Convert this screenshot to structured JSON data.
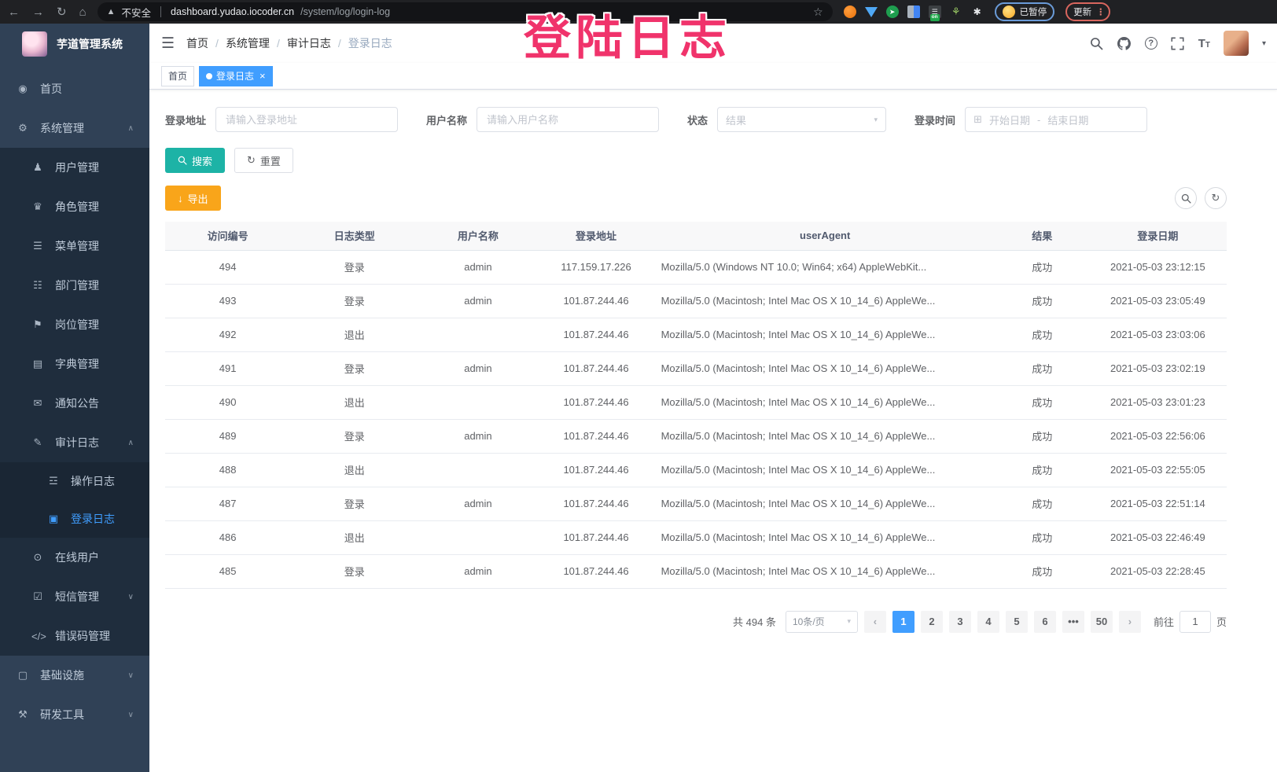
{
  "browser": {
    "security_label": "不安全",
    "url_host": "dashboard.yudao.iocoder.cn",
    "url_path": "/system/log/login-log",
    "extension_on_badge": "on",
    "profile_badge": "已暂停",
    "update_button": "更新"
  },
  "watermark": {
    "text": "登陆日志"
  },
  "sidebar": {
    "title": "芋道管理系统",
    "menu": [
      {
        "label": "首页",
        "icon": "dashboard",
        "level": 1
      },
      {
        "label": "系统管理",
        "icon": "system",
        "level": 1,
        "expand": "up"
      },
      {
        "label": "用户管理",
        "icon": "user",
        "level": 2
      },
      {
        "label": "角色管理",
        "icon": "role",
        "level": 2
      },
      {
        "label": "菜单管理",
        "icon": "menu",
        "level": 2
      },
      {
        "label": "部门管理",
        "icon": "dept",
        "level": 2
      },
      {
        "label": "岗位管理",
        "icon": "post",
        "level": 2
      },
      {
        "label": "字典管理",
        "icon": "dict",
        "level": 2
      },
      {
        "label": "通知公告",
        "icon": "notice",
        "level": 2
      },
      {
        "label": "审计日志",
        "icon": "log",
        "level": 2,
        "expand": "up"
      },
      {
        "label": "操作日志",
        "icon": "operate-log",
        "level": 3
      },
      {
        "label": "登录日志",
        "icon": "login-log",
        "level": 3,
        "active": true
      },
      {
        "label": "在线用户",
        "icon": "online-user",
        "level": 2
      },
      {
        "label": "短信管理",
        "icon": "sms",
        "level": 2,
        "expand": "down"
      },
      {
        "label": "错误码管理",
        "icon": "error-code",
        "level": 2
      },
      {
        "label": "基础设施",
        "icon": "infra",
        "level": 1,
        "expand": "down"
      },
      {
        "label": "研发工具",
        "icon": "dev-tool",
        "level": 1,
        "expand": "down"
      }
    ]
  },
  "header": {
    "breadcrumb": [
      "首页",
      "系统管理",
      "审计日志",
      "登录日志"
    ]
  },
  "tags": {
    "items": [
      {
        "label": "首页",
        "active": false
      },
      {
        "label": "登录日志",
        "active": true
      }
    ]
  },
  "filters": {
    "login_address": {
      "label": "登录地址",
      "placeholder": "请输入登录地址"
    },
    "username": {
      "label": "用户名称",
      "placeholder": "请输入用户名称"
    },
    "status": {
      "label": "状态",
      "placeholder": "结果"
    },
    "login_time": {
      "label": "登录时间",
      "start_placeholder": "开始日期",
      "separator": "-",
      "end_placeholder": "结束日期"
    },
    "search_button": "搜索",
    "reset_button": "重置"
  },
  "toolbar": {
    "export_button": "导出"
  },
  "table": {
    "columns": [
      "访问编号",
      "日志类型",
      "用户名称",
      "登录地址",
      "userAgent",
      "结果",
      "登录日期"
    ],
    "rows": [
      {
        "id": "494",
        "type": "登录",
        "user": "admin",
        "ip": "117.159.17.226",
        "ua": "Mozilla/5.0 (Windows NT 10.0; Win64; x64) AppleWebKit...",
        "result": "成功",
        "date": "2021-05-03 23:12:15"
      },
      {
        "id": "493",
        "type": "登录",
        "user": "admin",
        "ip": "101.87.244.46",
        "ua": "Mozilla/5.0 (Macintosh; Intel Mac OS X 10_14_6) AppleWe...",
        "result": "成功",
        "date": "2021-05-03 23:05:49"
      },
      {
        "id": "492",
        "type": "退出",
        "user": "",
        "ip": "101.87.244.46",
        "ua": "Mozilla/5.0 (Macintosh; Intel Mac OS X 10_14_6) AppleWe...",
        "result": "成功",
        "date": "2021-05-03 23:03:06"
      },
      {
        "id": "491",
        "type": "登录",
        "user": "admin",
        "ip": "101.87.244.46",
        "ua": "Mozilla/5.0 (Macintosh; Intel Mac OS X 10_14_6) AppleWe...",
        "result": "成功",
        "date": "2021-05-03 23:02:19"
      },
      {
        "id": "490",
        "type": "退出",
        "user": "",
        "ip": "101.87.244.46",
        "ua": "Mozilla/5.0 (Macintosh; Intel Mac OS X 10_14_6) AppleWe...",
        "result": "成功",
        "date": "2021-05-03 23:01:23"
      },
      {
        "id": "489",
        "type": "登录",
        "user": "admin",
        "ip": "101.87.244.46",
        "ua": "Mozilla/5.0 (Macintosh; Intel Mac OS X 10_14_6) AppleWe...",
        "result": "成功",
        "date": "2021-05-03 22:56:06"
      },
      {
        "id": "488",
        "type": "退出",
        "user": "",
        "ip": "101.87.244.46",
        "ua": "Mozilla/5.0 (Macintosh; Intel Mac OS X 10_14_6) AppleWe...",
        "result": "成功",
        "date": "2021-05-03 22:55:05"
      },
      {
        "id": "487",
        "type": "登录",
        "user": "admin",
        "ip": "101.87.244.46",
        "ua": "Mozilla/5.0 (Macintosh; Intel Mac OS X 10_14_6) AppleWe...",
        "result": "成功",
        "date": "2021-05-03 22:51:14"
      },
      {
        "id": "486",
        "type": "退出",
        "user": "",
        "ip": "101.87.244.46",
        "ua": "Mozilla/5.0 (Macintosh; Intel Mac OS X 10_14_6) AppleWe...",
        "result": "成功",
        "date": "2021-05-03 22:46:49"
      },
      {
        "id": "485",
        "type": "登录",
        "user": "admin",
        "ip": "101.87.244.46",
        "ua": "Mozilla/5.0 (Macintosh; Intel Mac OS X 10_14_6) AppleWe...",
        "result": "成功",
        "date": "2021-05-03 22:28:45"
      }
    ]
  },
  "pagination": {
    "total": "共 494 条",
    "page_size": "10条/页",
    "pages": [
      "1",
      "2",
      "3",
      "4",
      "5",
      "6",
      "•••",
      "50"
    ],
    "active_page": "1",
    "prev": "‹",
    "next": "›",
    "goto_label": "前往",
    "goto_value": "1",
    "goto_suffix": "页"
  },
  "colors": {
    "accent_blue": "#409eff",
    "sidebar_bg": "#304156",
    "submenu_bg": "#1f2d3d",
    "search_teal": "#1db3a6",
    "export_amber": "#f9a51a",
    "watermark_pink": "#f0336b"
  }
}
